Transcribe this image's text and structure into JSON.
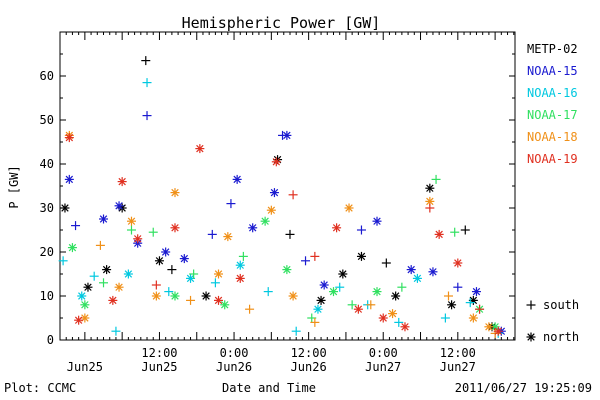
{
  "footer": {
    "left": "Plot: CCMC",
    "center": "Date and Time",
    "right": "2011/06/27 19:25:09"
  },
  "chart_data": {
    "type": "scatter",
    "title": "Hemispheric Power [GW]",
    "xlabel": "Date and Time",
    "ylabel": "P [GW]",
    "xlim": [
      -4.0,
      69.2
    ],
    "ylim": [
      0,
      70
    ],
    "x_ticks": [
      {
        "x": 0,
        "label": ""
      },
      {
        "x": 12,
        "label": "12:00",
        "sub": "Jun25"
      },
      {
        "x": 24,
        "label": "0:00",
        "sub": "Jun26"
      },
      {
        "x": 36,
        "label": "12:00",
        "sub": "Jun26"
      },
      {
        "x": 48,
        "label": "0:00",
        "sub": "Jun27"
      },
      {
        "x": 60,
        "label": "12:00",
        "sub": "Jun27"
      }
    ],
    "x_sub_first": "Jun25",
    "y_ticks": [
      0,
      10,
      20,
      30,
      40,
      50,
      60
    ],
    "x_unit_note": "hours since 2011-06-25 00:00 UT",
    "marker_legend": [
      {
        "symbol": "+",
        "label": "south"
      },
      {
        "symbol": "*",
        "label": "north"
      }
    ],
    "series": [
      {
        "name": "METP-02",
        "color": "#000000",
        "points": [
          {
            "x": -3.2,
            "y": 30,
            "m": "*"
          },
          {
            "x": 0.5,
            "y": 12,
            "m": "*"
          },
          {
            "x": 3.5,
            "y": 16,
            "m": "*"
          },
          {
            "x": 6.0,
            "y": 30,
            "m": "*"
          },
          {
            "x": 9.8,
            "y": 63.5,
            "m": "+"
          },
          {
            "x": 12.0,
            "y": 18,
            "m": "*"
          },
          {
            "x": 14.0,
            "y": 16,
            "m": "+"
          },
          {
            "x": 19.5,
            "y": 10,
            "m": "*"
          },
          {
            "x": 31.0,
            "y": 41,
            "m": "*"
          },
          {
            "x": 33.0,
            "y": 24,
            "m": "+"
          },
          {
            "x": 38.0,
            "y": 9,
            "m": "*"
          },
          {
            "x": 41.5,
            "y": 15,
            "m": "*"
          },
          {
            "x": 44.5,
            "y": 19,
            "m": "*"
          },
          {
            "x": 48.5,
            "y": 17.5,
            "m": "+"
          },
          {
            "x": 50.0,
            "y": 10,
            "m": "*"
          },
          {
            "x": 55.5,
            "y": 34.5,
            "m": "*"
          },
          {
            "x": 59.0,
            "y": 8,
            "m": "*"
          },
          {
            "x": 61.2,
            "y": 25,
            "m": "+"
          },
          {
            "x": 62.5,
            "y": 9,
            "m": "*"
          },
          {
            "x": 65.5,
            "y": 3,
            "m": "*"
          }
        ]
      },
      {
        "name": "NOAA-15",
        "color": "#1a1ad0",
        "points": [
          {
            "x": -2.5,
            "y": 36.5,
            "m": "*"
          },
          {
            "x": -1.5,
            "y": 26,
            "m": "+"
          },
          {
            "x": 3.0,
            "y": 27.5,
            "m": "*"
          },
          {
            "x": 5.5,
            "y": 30.5,
            "m": "*"
          },
          {
            "x": 8.5,
            "y": 22,
            "m": "*"
          },
          {
            "x": 10.0,
            "y": 51,
            "m": "+"
          },
          {
            "x": 13.0,
            "y": 20,
            "m": "*"
          },
          {
            "x": 16.0,
            "y": 18.5,
            "m": "*"
          },
          {
            "x": 20.5,
            "y": 24,
            "m": "+"
          },
          {
            "x": 23.5,
            "y": 31,
            "m": "+"
          },
          {
            "x": 24.5,
            "y": 36.5,
            "m": "*"
          },
          {
            "x": 27.0,
            "y": 25.5,
            "m": "*"
          },
          {
            "x": 30.5,
            "y": 33.5,
            "m": "*"
          },
          {
            "x": 31.8,
            "y": 46.5,
            "m": "+"
          },
          {
            "x": 32.5,
            "y": 46.5,
            "m": "*"
          },
          {
            "x": 35.5,
            "y": 18,
            "m": "+"
          },
          {
            "x": 38.5,
            "y": 12.5,
            "m": "*"
          },
          {
            "x": 44.5,
            "y": 25,
            "m": "+"
          },
          {
            "x": 47.0,
            "y": 27,
            "m": "*"
          },
          {
            "x": 52.5,
            "y": 16,
            "m": "*"
          },
          {
            "x": 56.0,
            "y": 15.5,
            "m": "*"
          },
          {
            "x": 60.0,
            "y": 12,
            "m": "+"
          },
          {
            "x": 63.0,
            "y": 11,
            "m": "*"
          },
          {
            "x": 67.0,
            "y": 2,
            "m": "*"
          }
        ]
      },
      {
        "name": "NOAA-16",
        "color": "#00c8e0",
        "points": [
          {
            "x": -3.5,
            "y": 18,
            "m": "+"
          },
          {
            "x": -0.5,
            "y": 10,
            "m": "*"
          },
          {
            "x": 1.5,
            "y": 14.5,
            "m": "+"
          },
          {
            "x": 5.0,
            "y": 2,
            "m": "+"
          },
          {
            "x": 7.0,
            "y": 15,
            "m": "*"
          },
          {
            "x": 10.0,
            "y": 58.5,
            "m": "+"
          },
          {
            "x": 13.5,
            "y": 11,
            "m": "+"
          },
          {
            "x": 17.0,
            "y": 14,
            "m": "*"
          },
          {
            "x": 21.0,
            "y": 13,
            "m": "+"
          },
          {
            "x": 25.0,
            "y": 17,
            "m": "*"
          },
          {
            "x": 29.5,
            "y": 11,
            "m": "+"
          },
          {
            "x": 34.0,
            "y": 2,
            "m": "+"
          },
          {
            "x": 37.5,
            "y": 7,
            "m": "*"
          },
          {
            "x": 41.0,
            "y": 12,
            "m": "+"
          },
          {
            "x": 45.5,
            "y": 8,
            "m": "+"
          },
          {
            "x": 50.5,
            "y": 4,
            "m": "+"
          },
          {
            "x": 53.5,
            "y": 14,
            "m": "*"
          },
          {
            "x": 58.0,
            "y": 5,
            "m": "+"
          },
          {
            "x": 62.0,
            "y": 8.5,
            "m": "+"
          },
          {
            "x": 66.5,
            "y": 1.5,
            "m": "+"
          }
        ]
      },
      {
        "name": "NOAA-17",
        "color": "#30e060",
        "points": [
          {
            "x": -2.0,
            "y": 21,
            "m": "*"
          },
          {
            "x": 0.0,
            "y": 8,
            "m": "*"
          },
          {
            "x": 3.0,
            "y": 13,
            "m": "+"
          },
          {
            "x": 7.5,
            "y": 25,
            "m": "+"
          },
          {
            "x": 11.0,
            "y": 24.5,
            "m": "+"
          },
          {
            "x": 14.5,
            "y": 10,
            "m": "*"
          },
          {
            "x": 17.5,
            "y": 15,
            "m": "+"
          },
          {
            "x": 22.5,
            "y": 8,
            "m": "*"
          },
          {
            "x": 25.5,
            "y": 19,
            "m": "+"
          },
          {
            "x": 29.0,
            "y": 27,
            "m": "*"
          },
          {
            "x": 32.5,
            "y": 16,
            "m": "*"
          },
          {
            "x": 36.5,
            "y": 5,
            "m": "+"
          },
          {
            "x": 40.0,
            "y": 11,
            "m": "*"
          },
          {
            "x": 43.0,
            "y": 8,
            "m": "+"
          },
          {
            "x": 47.0,
            "y": 11,
            "m": "*"
          },
          {
            "x": 51.0,
            "y": 12,
            "m": "+"
          },
          {
            "x": 56.5,
            "y": 36.5,
            "m": "+"
          },
          {
            "x": 59.5,
            "y": 24.5,
            "m": "+"
          },
          {
            "x": 63.5,
            "y": 7,
            "m": "*"
          },
          {
            "x": 66.0,
            "y": 3,
            "m": "*"
          }
        ]
      },
      {
        "name": "NOAA-18",
        "color": "#f09018",
        "points": [
          {
            "x": -2.5,
            "y": 46.5,
            "m": "*"
          },
          {
            "x": 0.0,
            "y": 5,
            "m": "*"
          },
          {
            "x": 2.5,
            "y": 21.5,
            "m": "+"
          },
          {
            "x": 5.5,
            "y": 12,
            "m": "*"
          },
          {
            "x": 7.5,
            "y": 27,
            "m": "*"
          },
          {
            "x": 11.5,
            "y": 10,
            "m": "*"
          },
          {
            "x": 14.5,
            "y": 33.5,
            "m": "*"
          },
          {
            "x": 17.0,
            "y": 9,
            "m": "+"
          },
          {
            "x": 21.5,
            "y": 15,
            "m": "*"
          },
          {
            "x": 23.0,
            "y": 23.5,
            "m": "*"
          },
          {
            "x": 26.5,
            "y": 7,
            "m": "+"
          },
          {
            "x": 30.0,
            "y": 29.5,
            "m": "*"
          },
          {
            "x": 33.5,
            "y": 10,
            "m": "*"
          },
          {
            "x": 37.0,
            "y": 4,
            "m": "+"
          },
          {
            "x": 42.5,
            "y": 30,
            "m": "*"
          },
          {
            "x": 46.0,
            "y": 8,
            "m": "+"
          },
          {
            "x": 49.5,
            "y": 6,
            "m": "*"
          },
          {
            "x": 55.5,
            "y": 31.5,
            "m": "*"
          },
          {
            "x": 58.5,
            "y": 10,
            "m": "+"
          },
          {
            "x": 62.5,
            "y": 5,
            "m": "*"
          },
          {
            "x": 65.0,
            "y": 3,
            "m": "*"
          },
          {
            "x": 66.0,
            "y": 1.5,
            "m": "+"
          }
        ]
      },
      {
        "name": "NOAA-19",
        "color": "#e03020",
        "points": [
          {
            "x": -2.5,
            "y": 46,
            "m": "*"
          },
          {
            "x": -1.0,
            "y": 4.5,
            "m": "*"
          },
          {
            "x": 4.5,
            "y": 9,
            "m": "*"
          },
          {
            "x": 6.0,
            "y": 36,
            "m": "*"
          },
          {
            "x": 8.5,
            "y": 23,
            "m": "*"
          },
          {
            "x": 11.5,
            "y": 12.5,
            "m": "+"
          },
          {
            "x": 14.5,
            "y": 25.5,
            "m": "*"
          },
          {
            "x": 18.5,
            "y": 43.5,
            "m": "*"
          },
          {
            "x": 21.5,
            "y": 9,
            "m": "*"
          },
          {
            "x": 25.0,
            "y": 14,
            "m": "*"
          },
          {
            "x": 30.8,
            "y": 40.5,
            "m": "*"
          },
          {
            "x": 33.5,
            "y": 33,
            "m": "+"
          },
          {
            "x": 37.0,
            "y": 19,
            "m": "+"
          },
          {
            "x": 40.5,
            "y": 25.5,
            "m": "*"
          },
          {
            "x": 44.0,
            "y": 7,
            "m": "*"
          },
          {
            "x": 48.0,
            "y": 5,
            "m": "*"
          },
          {
            "x": 51.5,
            "y": 3,
            "m": "*"
          },
          {
            "x": 55.5,
            "y": 30,
            "m": "+"
          },
          {
            "x": 57.0,
            "y": 24,
            "m": "*"
          },
          {
            "x": 60.0,
            "y": 17.5,
            "m": "*"
          },
          {
            "x": 63.5,
            "y": 7,
            "m": "+"
          },
          {
            "x": 66.5,
            "y": 2,
            "m": "*"
          }
        ]
      }
    ]
  }
}
